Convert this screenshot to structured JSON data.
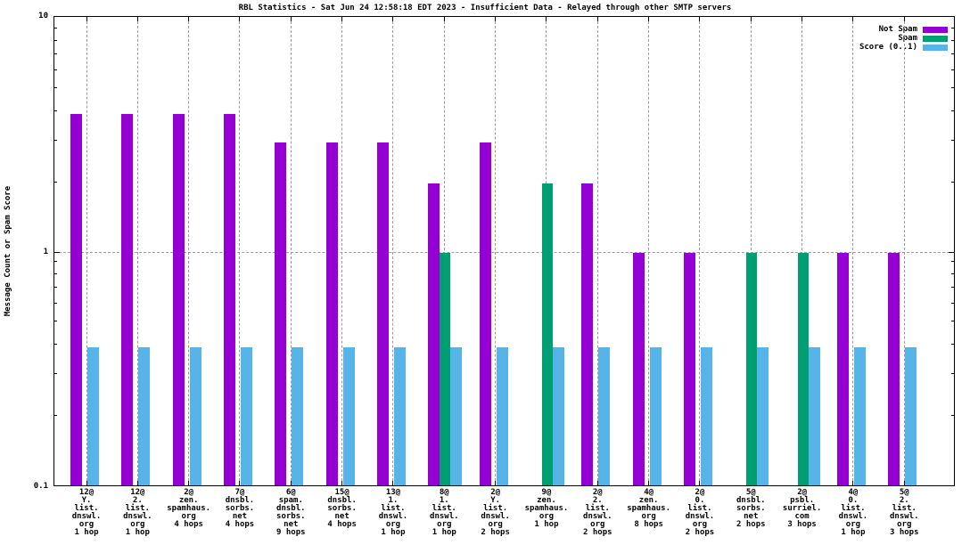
{
  "chart_data": {
    "type": "bar",
    "scale": "log-y",
    "title": "RBL Statistics - Sat Jun 24 12:58:18 EDT 2023 - Insufficient Data - Relayed through other SMTP servers",
    "ylabel": "Message Count or Spam Score",
    "xlabel": "",
    "ylim": [
      0.1,
      10
    ],
    "ytick_labels": [
      "10",
      "1",
      "0.1"
    ],
    "grid": "dashed gray, vertical at each category, horizontal at y=1",
    "legend_position": "top-right inside plot",
    "grid_color": "#9c9c9c",
    "categories": [
      [
        "12@",
        "Y.",
        "list.",
        "dnswl.",
        "org",
        "1 hop"
      ],
      [
        "12@",
        "2.",
        "list.",
        "dnswl.",
        "org",
        "1 hop"
      ],
      [
        "2@",
        "zen.",
        "spamhaus.",
        "org",
        "4 hops"
      ],
      [
        "7@",
        "dnsbl.",
        "sorbs.",
        "net",
        "4 hops"
      ],
      [
        "6@",
        "spam.",
        "dnsbl.",
        "sorbs.",
        "net",
        "9 hops"
      ],
      [
        "15@",
        "dnsbl.",
        "sorbs.",
        "net",
        "4 hops"
      ],
      [
        "13@",
        "1.",
        "list.",
        "dnswl.",
        "org",
        "1 hop"
      ],
      [
        "8@",
        "1.",
        "list.",
        "dnswl.",
        "org",
        "1 hop"
      ],
      [
        "2@",
        "Y.",
        "list.",
        "dnswl.",
        "org",
        "2 hops"
      ],
      [
        "9@",
        "zen.",
        "spamhaus.",
        "org",
        "1 hop"
      ],
      [
        "2@",
        "2.",
        "list.",
        "dnswl.",
        "org",
        "2 hops"
      ],
      [
        "4@",
        "zen.",
        "spamhaus.",
        "org",
        "8 hops"
      ],
      [
        "2@",
        "0.",
        "list.",
        "dnswl.",
        "org",
        "2 hops"
      ],
      [
        "5@",
        "dnsbl.",
        "sorbs.",
        "net",
        "2 hops"
      ],
      [
        "2@",
        "psbl.",
        "surriel.",
        "com",
        "3 hops"
      ],
      [
        "4@",
        "0.",
        "list.",
        "dnswl.",
        "org",
        "1 hop"
      ],
      [
        "5@",
        "2.",
        "list.",
        "dnswl.",
        "org",
        "3 hops"
      ]
    ],
    "series": [
      {
        "name": "Not Spam",
        "color": "#9400d3",
        "values": [
          4,
          4,
          4,
          4,
          3,
          3,
          3,
          2,
          3,
          null,
          2,
          1,
          1,
          null,
          null,
          1,
          1
        ]
      },
      {
        "name": "Spam",
        "color": "#009e73",
        "values": [
          null,
          null,
          null,
          null,
          null,
          null,
          null,
          1,
          null,
          2,
          null,
          null,
          null,
          1,
          1,
          null,
          null
        ]
      },
      {
        "name": "Score (0..1)",
        "color": "#56b4e9",
        "values": [
          0.39,
          0.39,
          0.39,
          0.39,
          0.39,
          0.39,
          0.39,
          0.39,
          0.39,
          0.39,
          0.39,
          0.39,
          0.39,
          0.39,
          0.39,
          0.39,
          0.39
        ]
      }
    ]
  }
}
